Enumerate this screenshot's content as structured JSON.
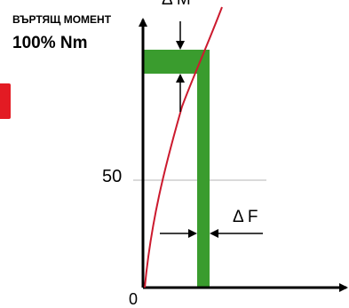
{
  "axis": {
    "y_title": "ВЪРТЯЩ МОМЕНТ",
    "y_value": "100% Nm",
    "tick_50": "50",
    "origin": "0"
  },
  "annotations": {
    "delta_m": "Δ M",
    "delta_f": "Δ F"
  },
  "colors": {
    "curve": "#cc1a2e",
    "band": "#3a9c2e",
    "axis": "#000000",
    "gridline": "#b5b5b5",
    "accent_tab": "#e31b23"
  }
}
